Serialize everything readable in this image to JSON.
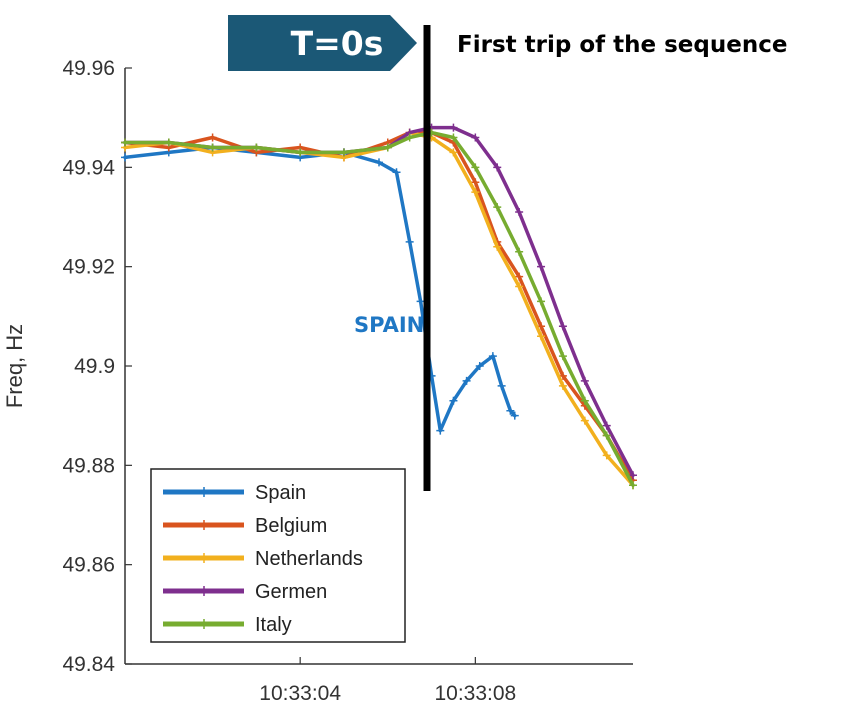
{
  "chart_data": {
    "type": "line",
    "title": "",
    "xlabel": "",
    "ylabel": "Freq, Hz",
    "x_unit": "seconds",
    "xlim": [
      0,
      11.6
    ],
    "ylim": [
      49.84,
      49.96
    ],
    "yticks": [
      49.84,
      49.86,
      49.88,
      49.9,
      49.92,
      49.94,
      49.96
    ],
    "ytick_labels": [
      "49.84",
      "49.86",
      "49.88",
      "49.9",
      "49.92",
      "49.94",
      "49.96"
    ],
    "xticks": [
      4,
      8
    ],
    "xtick_labels": [
      "10:33:04",
      "10:33:08"
    ],
    "grid": false,
    "legend": "bottom-left",
    "series": [
      {
        "name": "Spain",
        "color": "#1f77c4",
        "x": [
          0,
          1,
          2,
          3,
          4,
          5,
          5.8,
          6.2,
          6.5,
          6.75,
          7,
          7.2,
          7.5,
          7.8,
          8.1,
          8.4,
          8.6,
          8.8,
          8.9
        ],
        "y": [
          49.942,
          49.943,
          49.944,
          49.943,
          49.942,
          49.943,
          49.941,
          49.939,
          49.925,
          49.913,
          49.898,
          49.887,
          49.893,
          49.897,
          49.9,
          49.902,
          49.896,
          49.891,
          49.89
        ]
      },
      {
        "name": "Belgium",
        "color": "#d9541e",
        "x": [
          0,
          1,
          2,
          3,
          4,
          5,
          6,
          6.5,
          7,
          7.5,
          8,
          8.5,
          9,
          9.5,
          10,
          10.5,
          11,
          11.6
        ],
        "y": [
          49.945,
          49.944,
          49.946,
          49.943,
          49.944,
          49.942,
          49.945,
          49.947,
          49.947,
          49.945,
          49.937,
          49.925,
          49.918,
          49.908,
          49.898,
          49.892,
          49.886,
          49.877
        ]
      },
      {
        "name": "Netherlands",
        "color": "#f2b01e",
        "x": [
          0,
          1,
          2,
          3,
          4,
          5,
          6,
          6.5,
          7,
          7.5,
          8,
          8.5,
          9,
          9.5,
          10,
          10.5,
          11,
          11.6
        ],
        "y": [
          49.944,
          49.945,
          49.943,
          49.944,
          49.943,
          49.942,
          49.944,
          49.947,
          49.946,
          49.943,
          49.935,
          49.924,
          49.916,
          49.906,
          49.896,
          49.889,
          49.882,
          49.876
        ]
      },
      {
        "name": "Germen",
        "color": "#7e2f8e",
        "x": [
          0,
          1,
          2,
          3,
          4,
          5,
          6,
          6.5,
          7,
          7.5,
          8,
          8.5,
          9,
          9.5,
          10,
          10.5,
          11,
          11.6
        ],
        "y": [
          49.945,
          49.945,
          49.944,
          49.944,
          49.943,
          49.943,
          49.944,
          49.947,
          49.948,
          49.948,
          49.946,
          49.94,
          49.931,
          49.92,
          49.908,
          49.897,
          49.888,
          49.878
        ]
      },
      {
        "name": "Italy",
        "color": "#77ac30",
        "x": [
          0,
          1,
          2,
          3,
          4,
          5,
          6,
          6.5,
          7,
          7.5,
          8,
          8.5,
          9,
          9.5,
          10,
          10.5,
          11,
          11.6
        ],
        "y": [
          49.945,
          49.945,
          49.944,
          49.944,
          49.943,
          49.943,
          49.944,
          49.946,
          49.947,
          49.946,
          49.94,
          49.932,
          49.923,
          49.913,
          49.902,
          49.893,
          49.886,
          49.876
        ]
      }
    ],
    "annotations": {
      "marker_label": "T=0s",
      "marker_x": 5.7,
      "trip_text": "First trip of the sequence",
      "spain_label": "SPAIN",
      "marker_color": "#1b5876",
      "spain_label_color": "#1f77c4"
    }
  }
}
